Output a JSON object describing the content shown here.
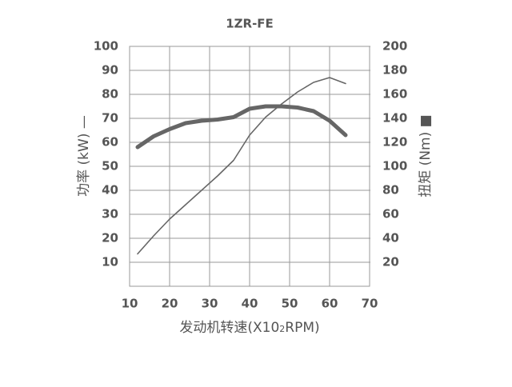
{
  "chart_data": {
    "type": "line",
    "title": "1ZR-FE",
    "x_label": [
      "发动机转速(X10",
      "2",
      "RPM)"
    ],
    "y_label": "功率 (kW) —",
    "y2_label": "扭矩 (Nm) ■",
    "x": [
      12,
      16,
      20,
      24,
      28,
      32,
      36,
      40,
      44,
      48,
      52,
      56,
      60,
      64
    ],
    "series": [
      {
        "name": "功率",
        "color": "#666666",
        "line_width": 1.6,
        "values": [
          13.5,
          21,
          28,
          34,
          40,
          46,
          52.5,
          63,
          70.5,
          76,
          81,
          85,
          87,
          84.5
        ]
      },
      {
        "name": "扭矩",
        "color": "#666666",
        "line_width": 5,
        "axis": "y2",
        "values": [
          116,
          125,
          131,
          136,
          138,
          139,
          141,
          148,
          150,
          150,
          149,
          146,
          138,
          126
        ]
      }
    ],
    "xlim": [
      10,
      70
    ],
    "xticks": [
      10,
      20,
      30,
      40,
      50,
      60,
      70
    ],
    "ylim": [
      0,
      100
    ],
    "yticks": [
      10,
      20,
      30,
      40,
      50,
      60,
      70,
      80,
      90,
      100
    ],
    "y2lim": [
      0,
      200
    ],
    "y2ticks": [
      20,
      40,
      60,
      80,
      100,
      120,
      140,
      160,
      180,
      200
    ],
    "grid": true
  }
}
